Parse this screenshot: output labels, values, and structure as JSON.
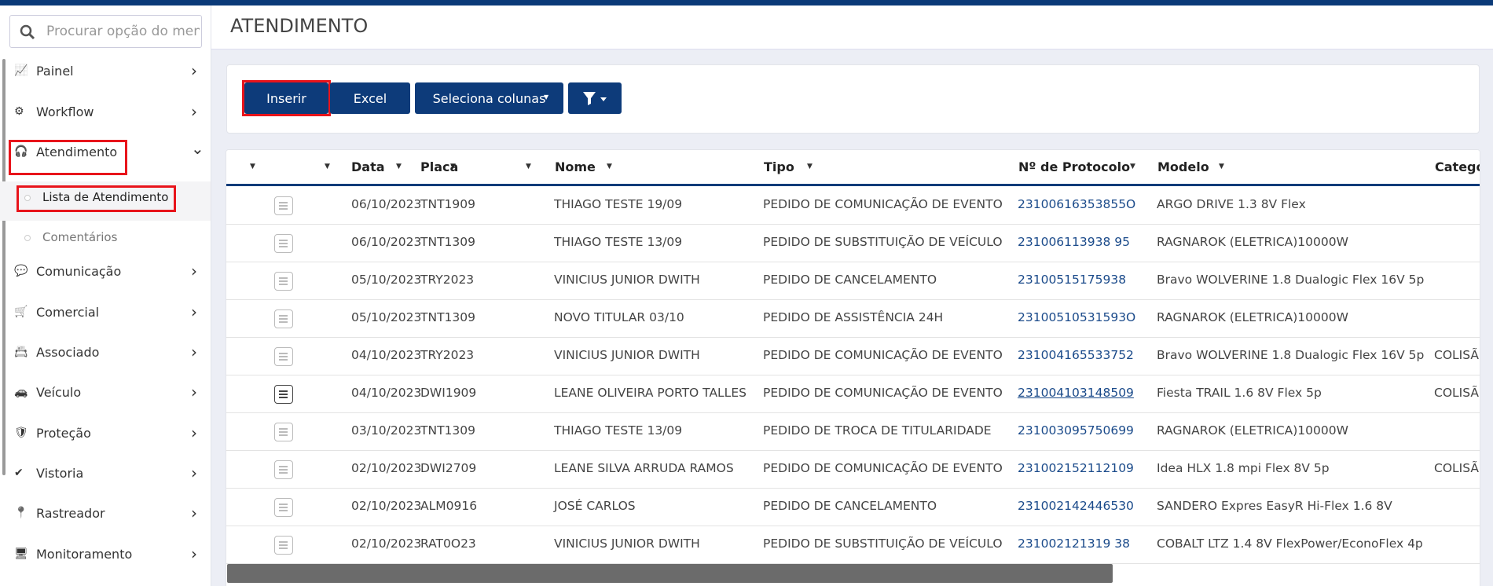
{
  "search": {
    "placeholder": "Procurar opção do menu"
  },
  "menu": [
    {
      "label": "Painel"
    },
    {
      "label": "Workflow"
    },
    {
      "label": "Atendimento",
      "children": [
        "Lista de Atendimento",
        "Comentários"
      ]
    },
    {
      "label": "Comunicação"
    },
    {
      "label": "Comercial"
    },
    {
      "label": "Associado"
    },
    {
      "label": "Veículo"
    },
    {
      "label": "Proteção"
    },
    {
      "label": "Vistoria"
    },
    {
      "label": "Rastreador"
    },
    {
      "label": "Monitoramento"
    }
  ],
  "header": {
    "title": "ATENDIMENTO"
  },
  "toolbar": {
    "buttons": [
      "Inserir",
      "Excel",
      "Seleciona colunas"
    ]
  },
  "table": {
    "columns": [
      "Data",
      "Placa",
      "Nome",
      "Tipo",
      "Nº de Protocolo",
      "Modelo",
      "Categor"
    ],
    "rows": [
      [
        "06/10/2023",
        "TNT1909",
        "THIAGO TESTE 19/09",
        "PEDIDO DE COMUNICAÇÃO DE EVENTO",
        "23100616353855O",
        "ARGO DRIVE 1.3 8V Flex",
        null
      ],
      [
        "06/10/2023",
        "TNT1309",
        "THIAGO TESTE 13/09",
        "PEDIDO DE SUBSTITUIÇÃO DE VEÍCULO",
        "231006113938 95",
        "RAGNAROK (ELETRICA)10000W",
        null
      ],
      [
        "05/10/2023",
        "TRY2023",
        "VINICIUS JUNIOR DWITH",
        "PEDIDO DE CANCELAMENTO",
        "23100515175938",
        "Bravo WOLVERINE 1.8 Dualogic Flex 16V 5p",
        null
      ],
      [
        "05/10/2023",
        "TNT1309",
        "NOVO TITULAR 03/10",
        "PEDIDO DE ASSISTÊNCIA 24H",
        "23100510531593O",
        "RAGNAROK (ELETRICA)10000W",
        null
      ],
      [
        "04/10/2023",
        "TRY2023",
        "VINICIUS JUNIOR DWITH",
        "PEDIDO DE COMUNICAÇÃO DE EVENTO",
        "231004165533752",
        "Bravo WOLVERINE 1.8 Dualogic Flex 16V 5p",
        "COLISÃ"
      ],
      [
        "04/10/2023",
        "DWI1909",
        "LEANE OLIVEIRA PORTO TALLES",
        "PEDIDO DE COMUNICAÇÃO DE EVENTO",
        "231004103148509",
        "Fiesta TRAIL 1.6 8V Flex 5p",
        "COLISÃ"
      ],
      [
        "03/10/2023",
        "TNT1309",
        "THIAGO TESTE 13/09",
        "PEDIDO DE TROCA DE TITULARIDADE",
        "231003095750699",
        "RAGNAROK (ELETRICA)10000W",
        null
      ],
      [
        "02/10/2023",
        "DWI2709",
        "LEANE SILVA ARRUDA RAMOS",
        "PEDIDO DE COMUNICAÇÃO DE EVENTO",
        "231002152112109",
        "Idea HLX 1.8 mpi Flex 8V 5p",
        "COLISÃ"
      ],
      [
        "02/10/2023",
        "ALM0916",
        "JOSÉ CARLOS",
        "PEDIDO DE CANCELAMENTO",
        "231002142446530",
        "SANDERO Expres EasyR Hi-Flex 1.6 8V",
        null
      ],
      [
        "02/10/2023",
        "RAT0O23",
        "VINICIUS JUNIOR DWITH",
        "PEDIDO DE SUBSTITUIÇÃO DE VEÍCULO",
        "231002121319 38",
        "COBALT LTZ 1.4 8V FlexPower/EconoFlex 4p",
        null
      ]
    ]
  }
}
